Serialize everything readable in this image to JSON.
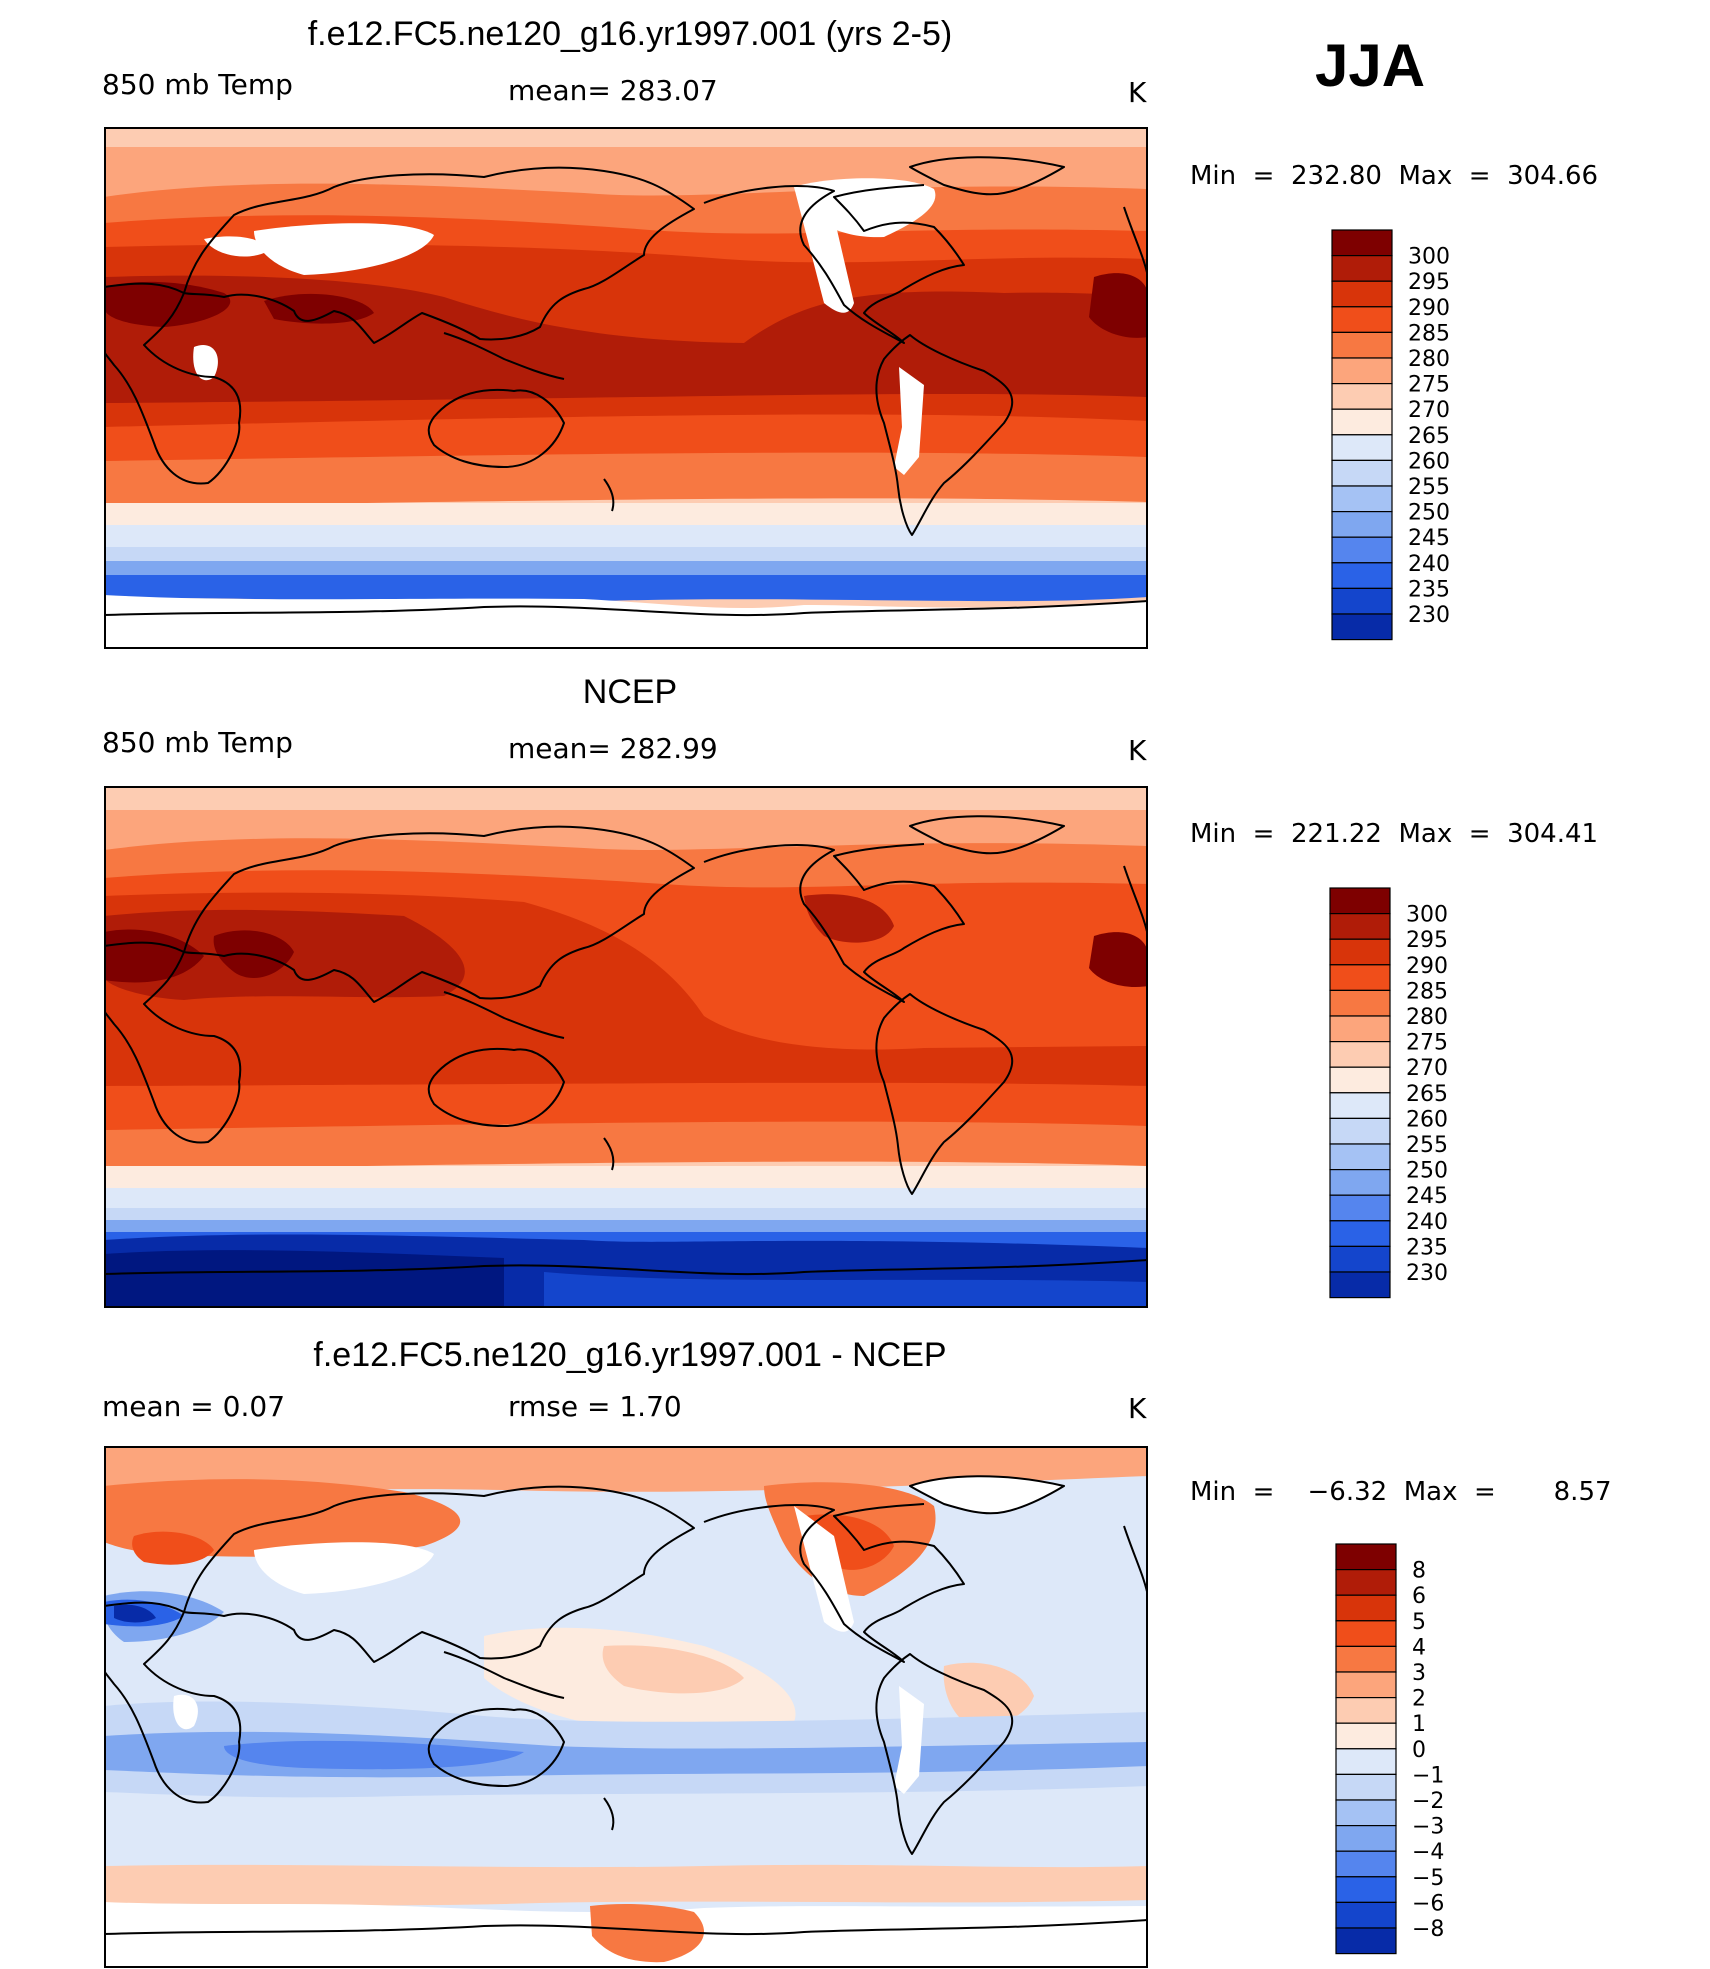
{
  "season": "JJA",
  "colors": {
    "warm": [
      "#7e0000",
      "#b01c08",
      "#d8340a",
      "#f04e1a",
      "#f77842",
      "#fca57c",
      "#fdccb2",
      "#fdebdf"
    ],
    "cool": [
      "#dde8f9",
      "#c6d8f6",
      "#a5c2f4",
      "#7fa7f0",
      "#5585ee",
      "#2a62e7",
      "#1445cc",
      "#072ba8",
      "#001780"
    ],
    "land_outline": "#000000",
    "missing": "#ffffff"
  },
  "panels": [
    {
      "id": "model",
      "title": "f.e12.FC5.ne120_g16.yr1997.001 (yrs 2-5)",
      "left_label": "850 mb Temp",
      "center_label": "mean= 283.07",
      "units": "K",
      "minmax": "Min  =  232.80  Max  =  304.66"
    },
    {
      "id": "obs",
      "title": "NCEP",
      "left_label": "850 mb Temp",
      "center_label": "mean= 282.99",
      "units": "K",
      "minmax": "Min  =  221.22  Max  =  304.41"
    },
    {
      "id": "diff",
      "title": "f.e12.FC5.ne120_g16.yr1997.001 - NCEP",
      "left_label": "mean =      0.07",
      "center_label": "rmse =     1.70",
      "units": "K",
      "minmax": "Min  =    −6.32  Max  =       8.57"
    }
  ],
  "legends": {
    "temperature": [
      "300",
      "295",
      "290",
      "285",
      "280",
      "275",
      "270",
      "265",
      "260",
      "255",
      "250",
      "245",
      "240",
      "235",
      "230"
    ],
    "difference": [
      "8",
      "6",
      "5",
      "4",
      "3",
      "2",
      "1",
      "0",
      "−1",
      "−2",
      "−3",
      "−4",
      "−5",
      "−6",
      "−8"
    ]
  }
}
